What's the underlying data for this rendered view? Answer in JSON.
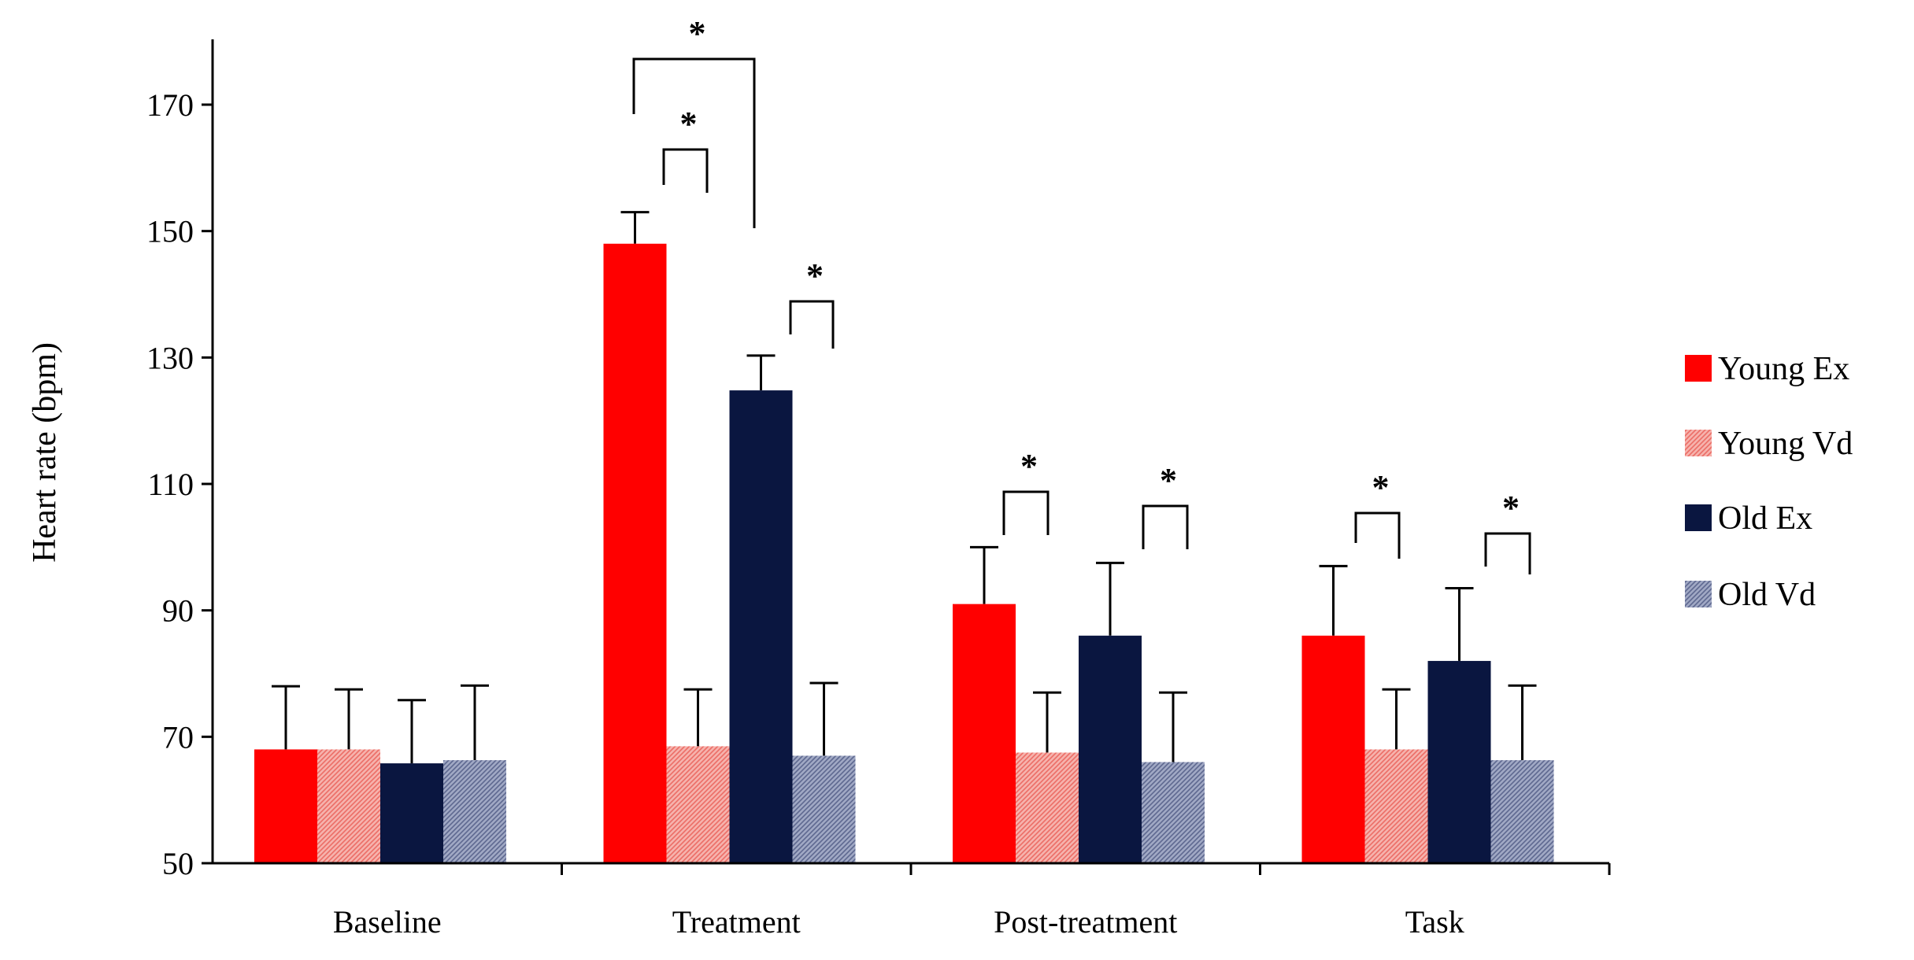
{
  "chart_data": {
    "type": "bar",
    "title": "",
    "xlabel": "",
    "ylabel": "Heart rate (bpm)",
    "ylim": [
      50,
      180
    ],
    "yticks": [
      "50",
      "70",
      "90",
      "110",
      "130",
      "150",
      "170"
    ],
    "categories": [
      "Baseline",
      "Treatment",
      "Post-treatment",
      "Task"
    ],
    "series": [
      {
        "name": "Young Ex",
        "values": [
          68,
          148,
          91,
          86
        ],
        "errors": [
          10,
          5,
          9,
          11
        ]
      },
      {
        "name": "Young Vd",
        "values": [
          68,
          68.5,
          67.5,
          68
        ],
        "errors": [
          9.5,
          9,
          9.5,
          9.5
        ]
      },
      {
        "name": "Old Ex",
        "values": [
          65.8,
          124.8,
          86,
          82
        ],
        "errors": [
          10,
          5.5,
          11.5,
          11.5
        ]
      },
      {
        "name": "Old Vd",
        "values": [
          66.3,
          67,
          66,
          66.3
        ],
        "errors": [
          11.8,
          11.5,
          11,
          11.8
        ]
      }
    ],
    "significance": [
      {
        "category": 1,
        "from_series": 0,
        "to_series": 2,
        "label": "*"
      },
      {
        "category": 1,
        "from_series": 0,
        "to_series": 1,
        "label": "*"
      },
      {
        "category": 1,
        "from_series": 2,
        "to_series": 3,
        "label": "*"
      },
      {
        "category": 2,
        "from_series": 0,
        "to_series": 1,
        "label": "*"
      },
      {
        "category": 2,
        "from_series": 2,
        "to_series": 3,
        "label": "*"
      },
      {
        "category": 3,
        "from_series": 0,
        "to_series": 1,
        "label": "*"
      },
      {
        "category": 3,
        "from_series": 2,
        "to_series": 3,
        "label": "*"
      }
    ],
    "legend_position": "right"
  },
  "colors": {
    "young_ex": "#ff0000",
    "young_vd": "#f4a6a0",
    "old_ex": "#0a1640",
    "old_vd": "#8791b2"
  }
}
